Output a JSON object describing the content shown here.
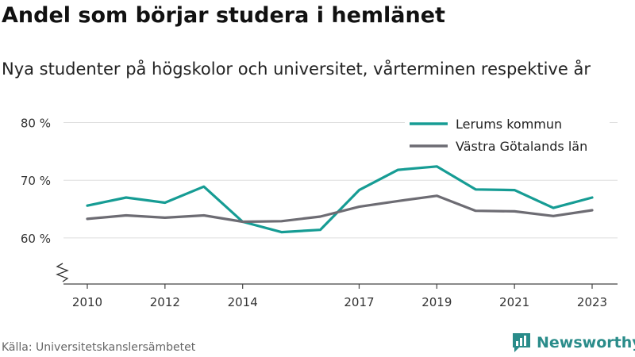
{
  "title": "Andel som börjar studera i hemlänet",
  "subtitle": "Nya studenter på högskolor och universitet, vårterminen respektive år",
  "source": "Källa: Universitetskanslersämbetet",
  "brand": "Newsworthy",
  "colors": {
    "lerum": "#169c94",
    "vg": "#6d6c73",
    "grid": "#dddddd",
    "brand": "#2a8c8a"
  },
  "chart_data": {
    "type": "line",
    "x": [
      2010,
      2011,
      2012,
      2013,
      2014,
      2015,
      2016,
      2017,
      2018,
      2019,
      2020,
      2021,
      2022,
      2023
    ],
    "xticks": [
      2010,
      2012,
      2014,
      2017,
      2019,
      2021,
      2023
    ],
    "yticks": [
      60,
      70,
      80
    ],
    "ytick_labels": [
      "60 %",
      "70 %",
      "80 %"
    ],
    "ylim": [
      52,
      82
    ],
    "xlim": [
      2010,
      2023
    ],
    "axis_break": true,
    "grid": true,
    "legend": "top-right",
    "series": [
      {
        "name": "Lerums kommun",
        "color": "#169c94",
        "values": [
          65.6,
          67.0,
          66.1,
          68.9,
          62.8,
          61.0,
          61.4,
          68.3,
          71.8,
          72.4,
          68.4,
          68.3,
          65.2,
          67.0
        ]
      },
      {
        "name": "Västra Götalands län",
        "color": "#6d6c73",
        "values": [
          63.3,
          63.9,
          63.5,
          63.9,
          62.8,
          62.9,
          63.7,
          65.4,
          66.4,
          67.3,
          64.7,
          64.6,
          63.8,
          64.8
        ]
      }
    ]
  }
}
